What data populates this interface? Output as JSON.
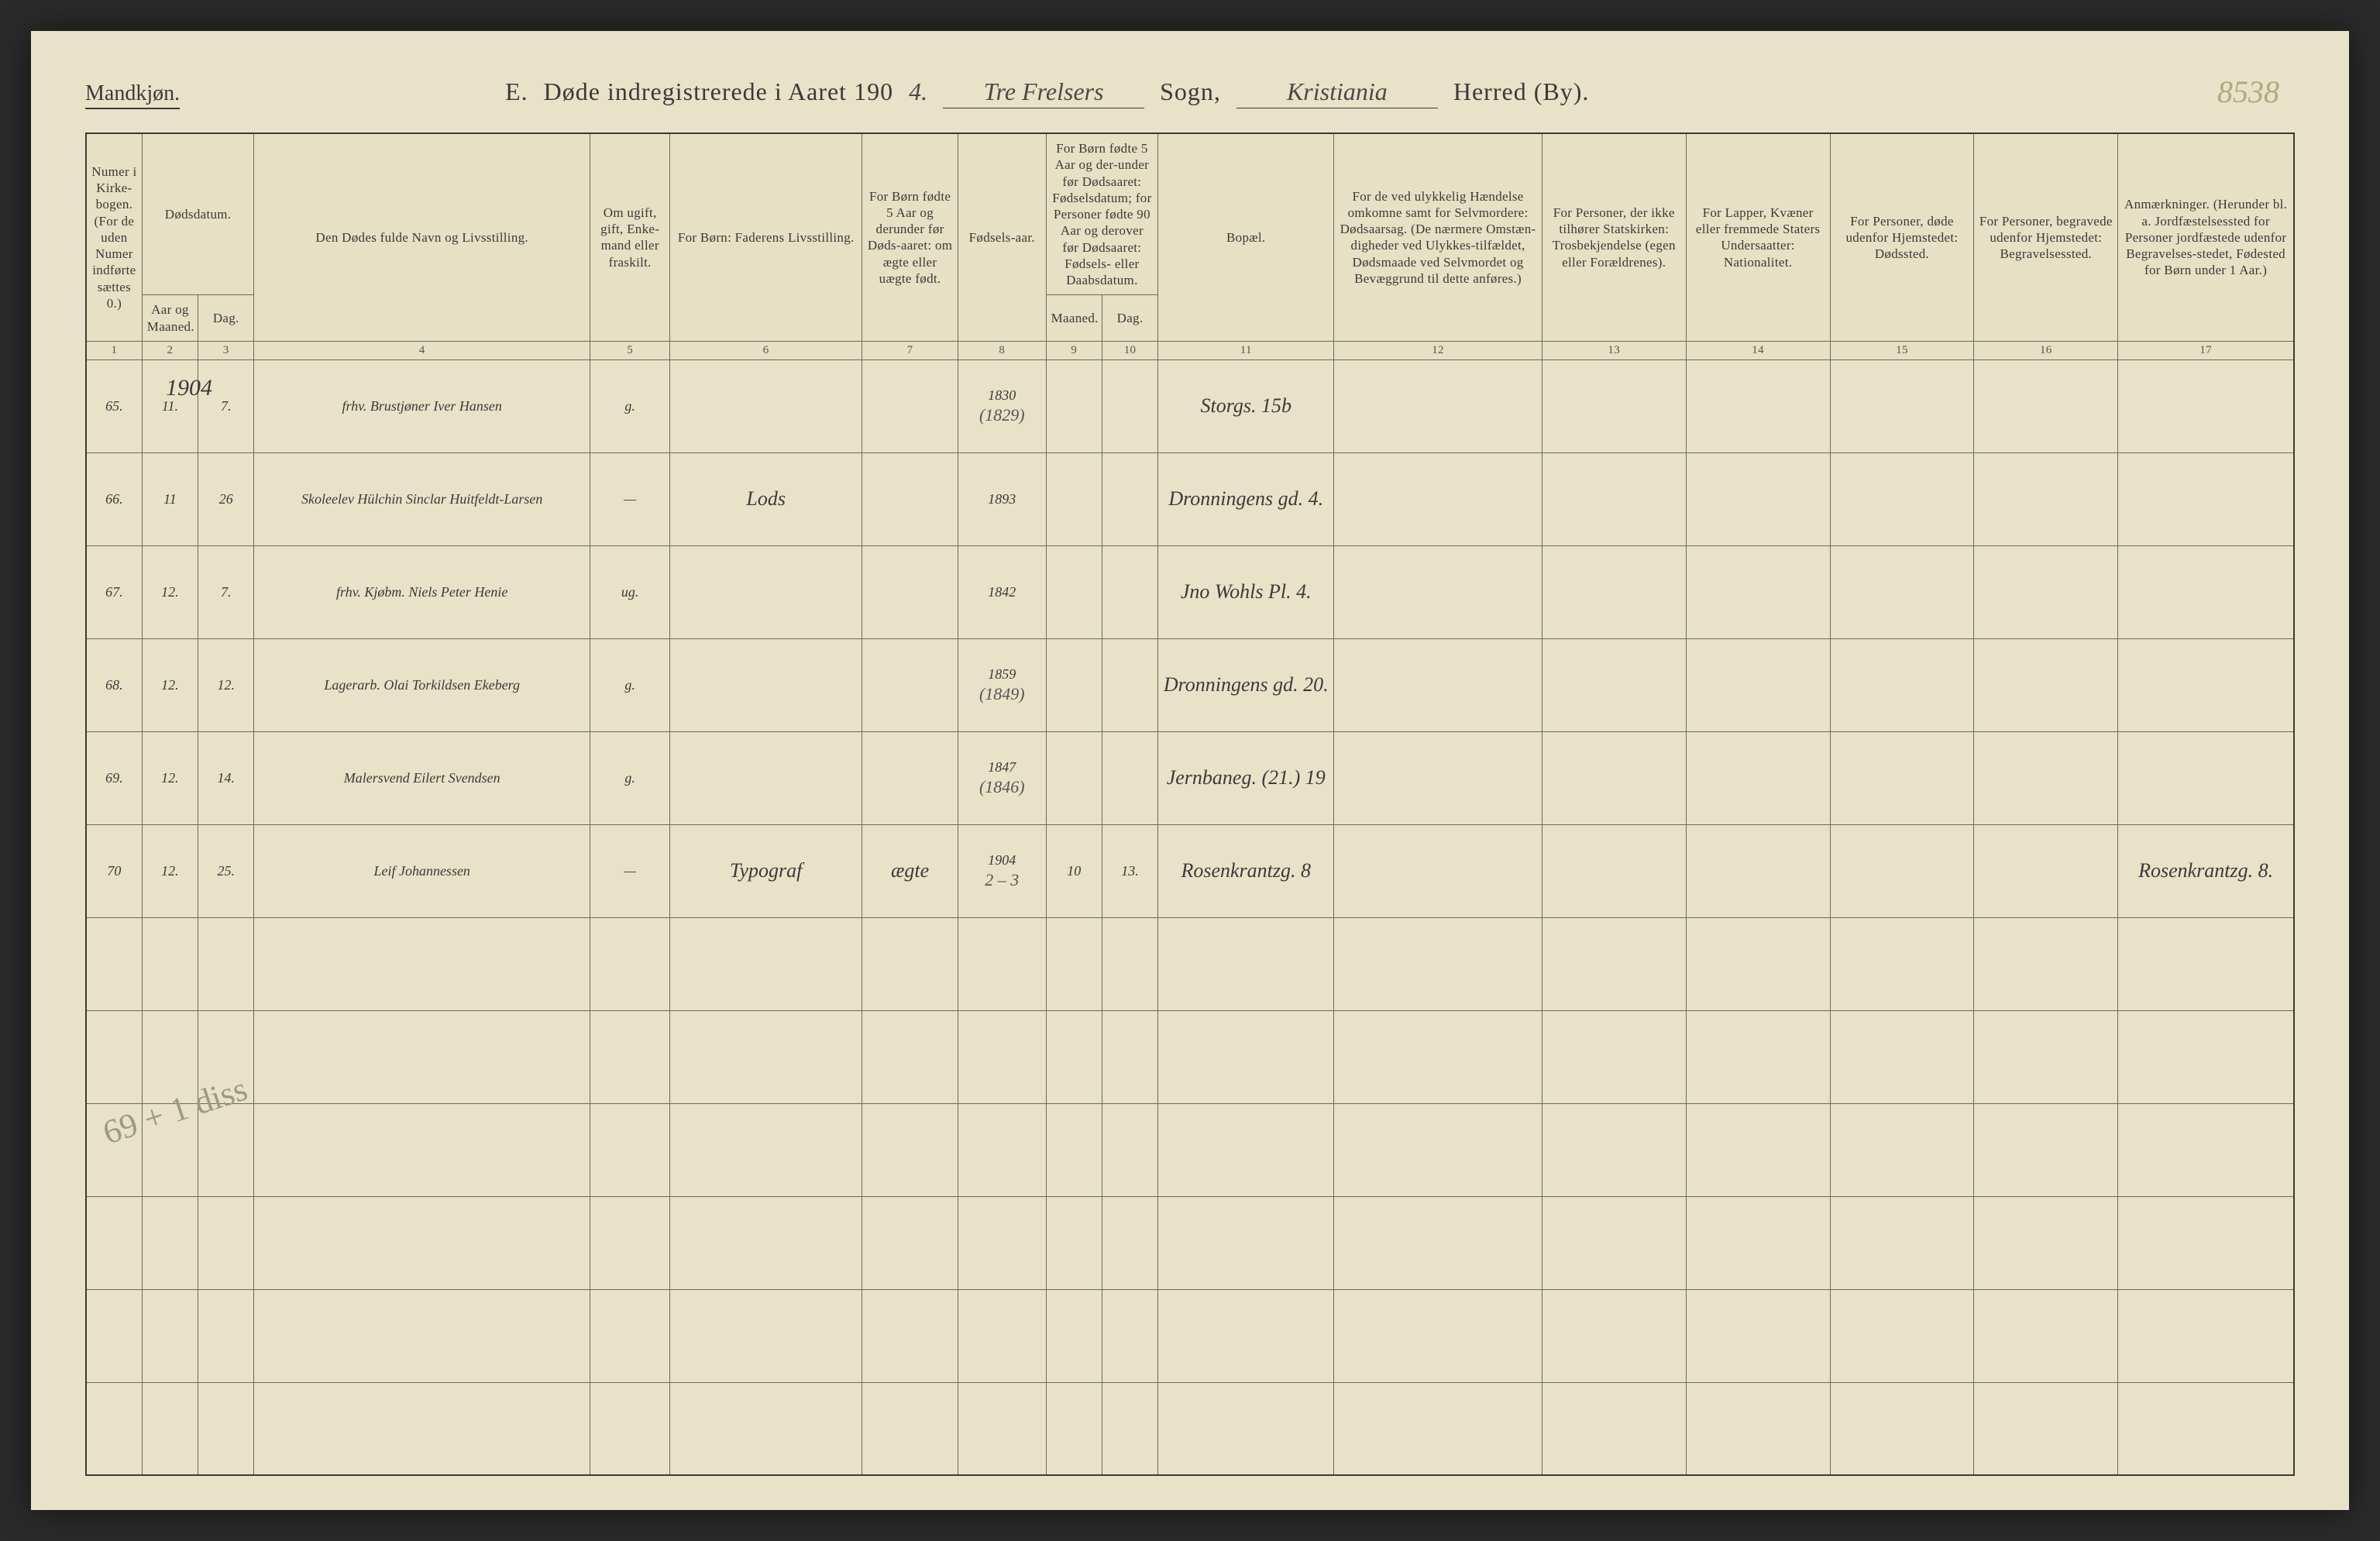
{
  "page_number_handwritten": "8538",
  "header": {
    "gender": "Mandkjøn.",
    "title_prefix": "E.",
    "title_main": "Døde indregistrerede i Aaret 190",
    "year_suffix": "4.",
    "sogn_value": "Tre Frelsers",
    "sogn_label": "Sogn,",
    "herred_value": "Kristiania",
    "herred_label": "Herred (By)."
  },
  "columns": {
    "c1": "Numer i Kirke-bogen. (For de uden Numer indførte sættes 0.)",
    "c2a": "Dødsdatum.",
    "c2b_aar": "Aar og Maaned.",
    "c2b_dag": "Dag.",
    "c4": "Den Dødes fulde Navn og Livsstilling.",
    "c5": "Om ugift, gift, Enke-mand eller fraskilt.",
    "c6": "For Børn: Faderens Livsstilling.",
    "c7": "For Børn fødte 5 Aar og derunder før Døds-aaret: om ægte eller uægte født.",
    "c8": "Fødsels-aar.",
    "c9_10": "For Børn fødte 5 Aar og der-under før Dødsaaret: Fødselsdatum; for Personer fødte 90 Aar og derover før Dødsaaret: Fødsels- eller Daabsdatum.",
    "c9": "Maaned.",
    "c10": "Dag.",
    "c11": "Bopæl.",
    "c12": "For de ved ulykkelig Hændelse omkomne samt for Selvmordere: Dødsaarsag. (De nærmere Omstæn-digheder ved Ulykkes-tilfældet, Dødsmaade ved Selvmordet og Bevæggrund til dette anføres.)",
    "c13": "For Personer, der ikke tilhører Statskirken: Trosbekjendelse (egen eller Forældrenes).",
    "c14": "For Lapper, Kvæner eller fremmede Staters Undersaatter: Nationalitet.",
    "c15": "For Personer, døde udenfor Hjemstedet: Dødssted.",
    "c16": "For Personer, begravede udenfor Hjemstedet: Begravelsessted.",
    "c17": "Anmærkninger. (Herunder bl. a. Jordfæstelsessted for Personer jordfæstede udenfor Begravelses-stedet, Fødested for Børn under 1 Aar.)"
  },
  "colnums": [
    "1",
    "2",
    "3",
    "4",
    "5",
    "6",
    "7",
    "8",
    "9",
    "10",
    "11",
    "12",
    "13",
    "14",
    "15",
    "16",
    "17"
  ],
  "year_above_col2": "1904",
  "rows": [
    {
      "num": "65.",
      "mnd": "11.",
      "dag": "7.",
      "navn": "frhv. Brustjøner Iver Hansen",
      "stand": "g.",
      "far": "",
      "ekte": "",
      "faar": "1830",
      "faar_sub": "(1829)",
      "fm": "",
      "fd": "",
      "bopel": "Storgs. 15b",
      "c12": "",
      "c13": "",
      "c14": "",
      "c15": "",
      "c16": "",
      "c17": ""
    },
    {
      "num": "66.",
      "mnd": "11",
      "dag": "26",
      "navn": "Skoleelev Hülchin Sinclar Huitfeldt-Larsen",
      "stand": "—",
      "far": "Lods",
      "ekte": "",
      "faar": "1893",
      "faar_sub": "",
      "fm": "",
      "fd": "",
      "bopel": "Dronningens gd. 4.",
      "c12": "",
      "c13": "",
      "c14": "",
      "c15": "",
      "c16": "",
      "c17": ""
    },
    {
      "num": "67.",
      "mnd": "12.",
      "dag": "7.",
      "navn": "frhv. Kjøbm. Niels Peter Henie",
      "stand": "ug.",
      "far": "",
      "ekte": "",
      "faar": "1842",
      "faar_sub": "",
      "fm": "",
      "fd": "",
      "bopel": "Jno Wohls Pl. 4.",
      "c12": "",
      "c13": "",
      "c14": "",
      "c15": "",
      "c16": "",
      "c17": ""
    },
    {
      "num": "68.",
      "mnd": "12.",
      "dag": "12.",
      "navn": "Lagerarb. Olai Torkildsen Ekeberg",
      "stand": "g.",
      "far": "",
      "ekte": "",
      "faar": "1859",
      "faar_sub": "(1849)",
      "fm": "",
      "fd": "",
      "bopel": "Dronningens gd. 20.",
      "c12": "",
      "c13": "",
      "c14": "",
      "c15": "",
      "c16": "",
      "c17": ""
    },
    {
      "num": "69.",
      "mnd": "12.",
      "dag": "14.",
      "navn": "Malersvend Eilert Svendsen",
      "stand": "g.",
      "far": "",
      "ekte": "",
      "faar": "1847",
      "faar_sub": "(1846)",
      "fm": "",
      "fd": "",
      "bopel": "Jernbaneg. (21.) 19",
      "c12": "",
      "c13": "",
      "c14": "",
      "c15": "",
      "c16": "",
      "c17": ""
    },
    {
      "num": "70",
      "mnd": "12.",
      "dag": "25.",
      "navn": "Leif Johannessen",
      "stand": "—",
      "far": "Typograf",
      "ekte": "ægte",
      "faar": "1904",
      "faar_sub": "2 – 3",
      "fm": "10",
      "fd": "13.",
      "bopel": "Rosenkrantzg. 8",
      "c12": "",
      "c13": "",
      "c14": "",
      "c15": "",
      "c16": "",
      "c17": "Rosenkrantzg. 8."
    }
  ],
  "empty_rows": 6,
  "margin_note": "69\n+ 1 diss"
}
